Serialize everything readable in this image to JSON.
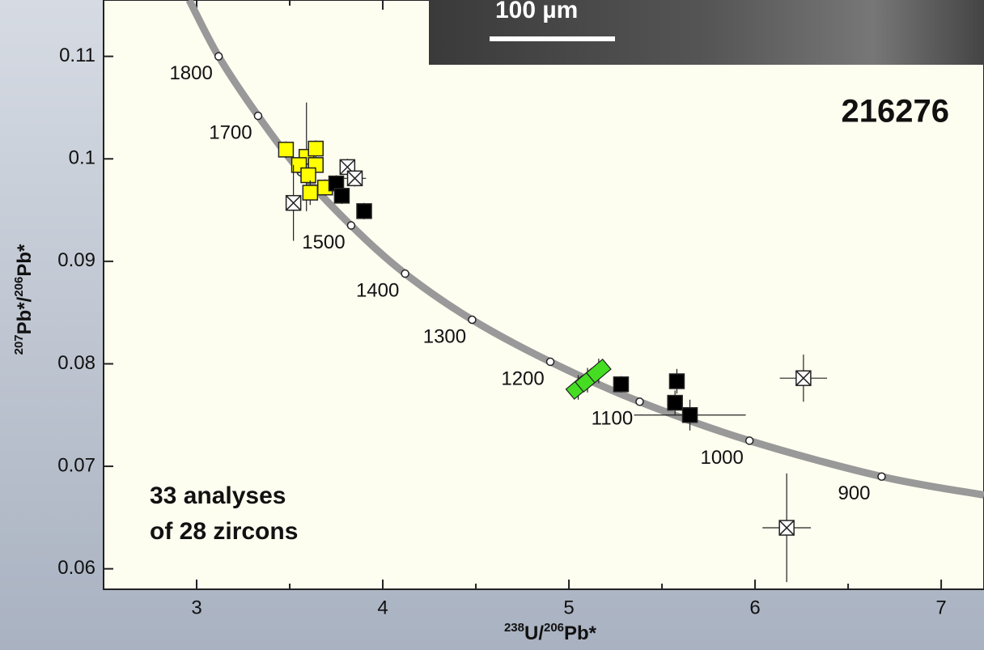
{
  "chart_data": {
    "type": "scatter",
    "xlabel": [
      "238",
      "U/",
      "206",
      "Pb*"
    ],
    "ylabel": [
      "207",
      "Pb*/",
      "206",
      "Pb*"
    ],
    "sample": "216276",
    "note": [
      "33 analyses",
      "of 28 zircons"
    ],
    "scale_bar": "100 µm",
    "xlim": [
      2.5,
      7.23
    ],
    "ylim": [
      0.058,
      0.1155
    ],
    "xticks": [
      3,
      4,
      5,
      6,
      7
    ],
    "xminorticks": [
      3.5,
      4.5,
      5.5,
      6.5
    ],
    "yticks": [
      0.06,
      0.07,
      0.08,
      0.09,
      0.1,
      0.11
    ],
    "concordia": {
      "color": "#999999",
      "x": [
        2.96,
        3.118,
        3.33,
        3.56,
        3.83,
        4.12,
        4.48,
        4.9,
        5.38,
        5.97,
        6.68,
        7.23
      ],
      "y": [
        0.1155,
        0.11,
        0.1042,
        0.0987,
        0.0935,
        0.0888,
        0.0843,
        0.0802,
        0.0763,
        0.0725,
        0.069,
        0.0672
      ],
      "labels": [
        null,
        "1800",
        "1700",
        null,
        "1500",
        "1400",
        "1300",
        "1200",
        "1100",
        "1000",
        "900",
        null
      ]
    },
    "series": [
      {
        "marker": "square",
        "color": "#ffff00",
        "x": [
          3.48,
          3.59,
          3.64,
          3.64,
          3.55,
          3.6,
          3.69,
          3.61
        ],
        "y": [
          0.1009,
          0.1002,
          0.101,
          0.0994,
          0.0994,
          0.0984,
          0.0972,
          0.0967
        ],
        "xerr": [
          0.03,
          0.03,
          0.03,
          0.03,
          0.03,
          0.03,
          0.03,
          0.03
        ],
        "yerr": [
          0.0008,
          0.0053,
          0.0008,
          0.0008,
          0.0008,
          0.0008,
          0.0008,
          0.0012
        ]
      },
      {
        "marker": "square",
        "color": "#000000",
        "x": [
          3.75,
          3.78,
          3.9,
          5.28,
          5.58,
          5.57,
          5.65
        ],
        "y": [
          0.0976,
          0.0964,
          0.0949,
          0.078,
          0.0783,
          0.0762,
          0.075
        ],
        "xerr": [
          0.03,
          0.03,
          0.03,
          0.04,
          0.04,
          0.04,
          0.3
        ],
        "yerr": [
          0.0008,
          0.0008,
          0.0008,
          0.0008,
          0.0012,
          0.0012,
          0.0015
        ]
      },
      {
        "marker": "crossed",
        "color": "#ffffff",
        "x": [
          3.52,
          3.81,
          3.85,
          6.26,
          6.17
        ],
        "y": [
          0.0957,
          0.0992,
          0.0981,
          0.0786,
          0.064
        ],
        "xerr": [
          0.04,
          0.04,
          0.06,
          0.127,
          0.13
        ],
        "yerr": [
          0.0037,
          0.0008,
          0.0008,
          0.0023,
          0.0053
        ]
      },
      {
        "marker": "diamond",
        "color": "#44dd22",
        "x": [
          5.05,
          5.1,
          5.16
        ],
        "y": [
          0.0777,
          0.0784,
          0.0793
        ],
        "xerr": [
          0.05,
          0.05,
          0.05
        ],
        "yerr": [
          0.0012,
          0.0012,
          0.0012
        ]
      }
    ]
  }
}
